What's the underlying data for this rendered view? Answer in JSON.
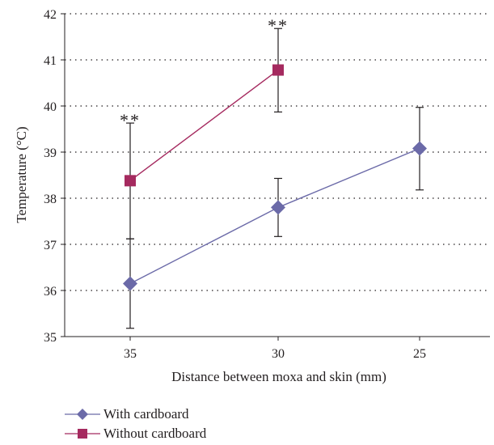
{
  "chart_data": {
    "type": "line",
    "xlabel": "Distance between moxa and skin (mm)",
    "ylabel": "Temperature (°C)",
    "categories": [
      "35",
      "30",
      "25"
    ],
    "ylim": [
      35,
      42
    ],
    "yticks": [
      35,
      36,
      37,
      38,
      39,
      40,
      41,
      42
    ],
    "grid": "horizontal dotted",
    "legend_position": "bottom",
    "series": [
      {
        "name": "With cardboard",
        "color": "#6b6aa8",
        "marker": "diamond",
        "points": [
          {
            "x": "35",
            "y": 36.15,
            "err_low": 35.18,
            "err_high": 37.12
          },
          {
            "x": "30",
            "y": 37.8,
            "err_low": 37.17,
            "err_high": 38.43
          },
          {
            "x": "25",
            "y": 39.08,
            "err_low": 38.18,
            "err_high": 39.97
          }
        ]
      },
      {
        "name": "Without cardboard",
        "color": "#a52a5f",
        "marker": "square",
        "points": [
          {
            "x": "35",
            "y": 38.38,
            "err_low": 37.12,
            "err_high": 39.63
          },
          {
            "x": "30",
            "y": 40.78,
            "err_low": 39.87,
            "err_high": 41.68
          }
        ]
      }
    ],
    "annotations": [
      {
        "x": "35",
        "text": "**"
      },
      {
        "x": "30",
        "text": "**"
      }
    ]
  }
}
